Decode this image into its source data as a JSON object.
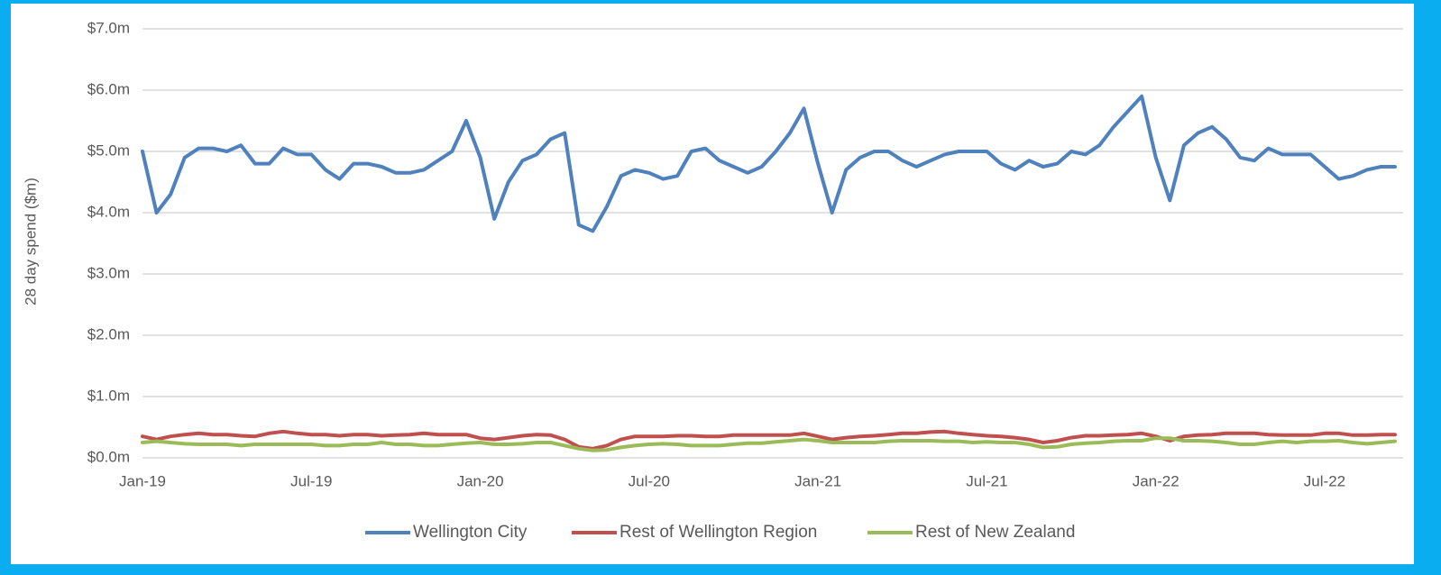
{
  "chart_data": {
    "type": "line",
    "y_label": "28 day spend ($m)",
    "categories": [
      "Jan-19",
      null,
      null,
      null,
      null,
      null,
      null,
      null,
      null,
      null,
      null,
      null,
      "Jul-19",
      null,
      null,
      null,
      null,
      null,
      null,
      null,
      null,
      null,
      null,
      null,
      "Jan-20",
      null,
      null,
      null,
      null,
      null,
      null,
      null,
      null,
      null,
      null,
      null,
      "Jul-20",
      null,
      null,
      null,
      null,
      null,
      null,
      null,
      null,
      null,
      null,
      null,
      "Jan-21",
      null,
      null,
      null,
      null,
      null,
      null,
      null,
      null,
      null,
      null,
      null,
      "Jul-21",
      null,
      null,
      null,
      null,
      null,
      null,
      null,
      null,
      null,
      null,
      null,
      "Jan-22",
      null,
      null,
      null,
      null,
      null,
      null,
      null,
      null,
      null,
      null,
      null,
      "Jul-22",
      null,
      null,
      null,
      null,
      null
    ],
    "series": [
      {
        "name": "Wellington City",
        "color": "#4f81bd",
        "values": [
          5.0,
          4.0,
          4.3,
          4.9,
          5.05,
          5.05,
          5.0,
          5.1,
          4.8,
          4.8,
          5.05,
          4.95,
          4.95,
          4.7,
          4.55,
          4.8,
          4.8,
          4.75,
          4.65,
          4.65,
          4.7,
          4.85,
          5.0,
          5.5,
          4.9,
          3.9,
          4.5,
          4.85,
          4.95,
          5.2,
          5.3,
          3.8,
          3.7,
          4.1,
          4.6,
          4.7,
          4.65,
          4.55,
          4.6,
          5.0,
          5.05,
          4.85,
          4.75,
          4.65,
          4.75,
          5.0,
          5.3,
          5.7,
          4.8,
          4.0,
          4.7,
          4.9,
          5.0,
          5.0,
          4.85,
          4.75,
          4.85,
          4.95,
          5.0,
          5.0,
          5.0,
          4.8,
          4.7,
          4.85,
          4.75,
          4.8,
          5.0,
          4.95,
          5.1,
          5.4,
          5.65,
          5.9,
          4.9,
          4.2,
          5.1,
          5.3,
          5.4,
          5.2,
          4.9,
          4.85,
          5.05,
          4.95,
          4.95,
          4.95,
          4.75,
          4.55,
          4.6,
          4.7,
          4.75,
          4.75
        ]
      },
      {
        "name": "Rest of Wellington Region",
        "color": "#c0504d",
        "values": [
          0.35,
          0.3,
          0.35,
          0.38,
          0.4,
          0.38,
          0.38,
          0.36,
          0.35,
          0.4,
          0.43,
          0.4,
          0.38,
          0.38,
          0.36,
          0.38,
          0.38,
          0.36,
          0.37,
          0.38,
          0.4,
          0.38,
          0.38,
          0.38,
          0.32,
          0.3,
          0.33,
          0.36,
          0.38,
          0.37,
          0.3,
          0.18,
          0.15,
          0.2,
          0.3,
          0.35,
          0.35,
          0.35,
          0.36,
          0.36,
          0.35,
          0.35,
          0.37,
          0.37,
          0.37,
          0.37,
          0.37,
          0.4,
          0.35,
          0.3,
          0.33,
          0.35,
          0.36,
          0.38,
          0.4,
          0.4,
          0.42,
          0.43,
          0.4,
          0.38,
          0.36,
          0.35,
          0.33,
          0.3,
          0.25,
          0.28,
          0.33,
          0.36,
          0.36,
          0.37,
          0.38,
          0.4,
          0.35,
          0.28,
          0.35,
          0.37,
          0.38,
          0.4,
          0.4,
          0.4,
          0.38,
          0.37,
          0.37,
          0.37,
          0.4,
          0.4,
          0.37,
          0.37,
          0.38,
          0.38
        ]
      },
      {
        "name": "Rest of New Zealand",
        "color": "#9bbb59",
        "values": [
          0.25,
          0.27,
          0.25,
          0.23,
          0.22,
          0.22,
          0.22,
          0.2,
          0.22,
          0.22,
          0.22,
          0.22,
          0.22,
          0.2,
          0.2,
          0.22,
          0.22,
          0.25,
          0.22,
          0.22,
          0.2,
          0.2,
          0.22,
          0.24,
          0.25,
          0.22,
          0.22,
          0.23,
          0.25,
          0.25,
          0.2,
          0.15,
          0.12,
          0.13,
          0.17,
          0.2,
          0.22,
          0.23,
          0.22,
          0.2,
          0.2,
          0.2,
          0.22,
          0.24,
          0.24,
          0.26,
          0.28,
          0.3,
          0.28,
          0.25,
          0.25,
          0.25,
          0.25,
          0.27,
          0.28,
          0.28,
          0.28,
          0.27,
          0.27,
          0.25,
          0.26,
          0.25,
          0.25,
          0.22,
          0.17,
          0.18,
          0.22,
          0.24,
          0.25,
          0.27,
          0.28,
          0.28,
          0.32,
          0.32,
          0.28,
          0.28,
          0.27,
          0.25,
          0.22,
          0.22,
          0.25,
          0.27,
          0.25,
          0.27,
          0.27,
          0.28,
          0.25,
          0.23,
          0.25,
          0.27
        ]
      }
    ],
    "ylim": [
      0,
      7
    ],
    "yticks": [
      {
        "value": 0,
        "label": "$0.0m"
      },
      {
        "value": 1,
        "label": "$1.0m"
      },
      {
        "value": 2,
        "label": "$2.0m"
      },
      {
        "value": 3,
        "label": "$3.0m"
      },
      {
        "value": 4,
        "label": "$4.0m"
      },
      {
        "value": 5,
        "label": "$5.0m"
      },
      {
        "value": 6,
        "label": "$6.0m"
      },
      {
        "value": 7,
        "label": "$7.0m"
      }
    ],
    "grid": true,
    "legend": "bottom"
  }
}
